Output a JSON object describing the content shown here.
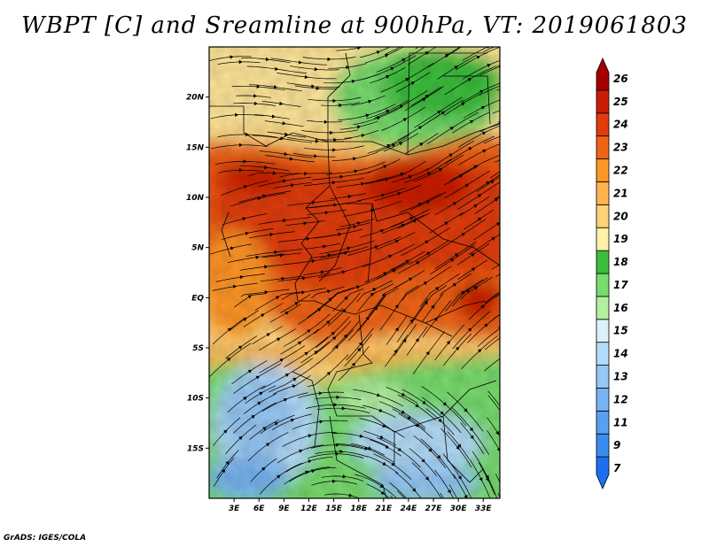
{
  "title": "WBPT [C] and Sreamline at 900hPa, VT: 2019061803",
  "credit": "GrADS: IGES/COLA",
  "map": {
    "lat_labels": [
      "20N",
      "15N",
      "10N",
      "5N",
      "EQ",
      "5S",
      "10S",
      "15S"
    ],
    "lon_labels": [
      "3E",
      "6E",
      "9E",
      "12E",
      "15E",
      "18E",
      "21E",
      "24E",
      "27E",
      "30E",
      "33E"
    ],
    "lat_values": [
      20,
      15,
      10,
      5,
      0,
      -5,
      -10,
      -15
    ],
    "lon_values": [
      3,
      6,
      9,
      12,
      15,
      18,
      21,
      24,
      27,
      30,
      33
    ],
    "extent": {
      "lon_min": 0,
      "lon_max": 35,
      "lat_min": -20,
      "lat_max": 25
    }
  },
  "colorbar": {
    "labels": [
      "7",
      "9",
      "11",
      "12",
      "13",
      "14",
      "15",
      "16",
      "17",
      "18",
      "19",
      "20",
      "21",
      "22",
      "23",
      "24",
      "25",
      "26"
    ],
    "colors": [
      "#1e6ff0",
      "#3c8cf0",
      "#5aa0f0",
      "#78b4f0",
      "#96c8f5",
      "#b4dcf8",
      "#dcf0fa",
      "#b4f0a0",
      "#78dc6e",
      "#3cbe3c",
      "#fff0aa",
      "#ffd278",
      "#ffb450",
      "#ff9628",
      "#f06414",
      "#e13c0a",
      "#c81e05",
      "#a50000"
    ]
  }
}
